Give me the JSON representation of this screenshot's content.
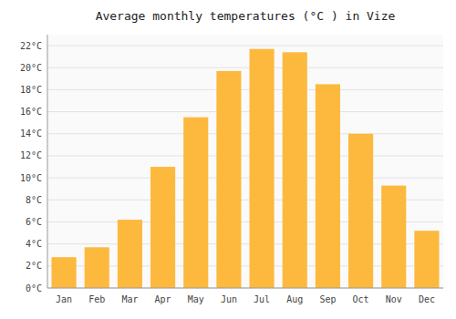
{
  "chart_data": {
    "type": "bar",
    "title": "Average monthly temperatures (°C ) in Vize",
    "categories": [
      "Jan",
      "Feb",
      "Mar",
      "Apr",
      "May",
      "Jun",
      "Jul",
      "Aug",
      "Sep",
      "Oct",
      "Nov",
      "Dec"
    ],
    "values": [
      2.8,
      3.7,
      6.2,
      11.0,
      15.5,
      19.7,
      21.7,
      21.4,
      18.5,
      14.0,
      9.3,
      5.2
    ],
    "color": "#FDB93E",
    "ylim": [
      0,
      23
    ],
    "yticks": [
      {
        "value": 0,
        "label": "0°C"
      },
      {
        "value": 2,
        "label": "2°C"
      },
      {
        "value": 4,
        "label": "4°C"
      },
      {
        "value": 6,
        "label": "6°C"
      },
      {
        "value": 8,
        "label": "8°C"
      },
      {
        "value": 10,
        "label": "10°C"
      },
      {
        "value": 12,
        "label": "12°C"
      },
      {
        "value": 14,
        "label": "14°C"
      },
      {
        "value": 16,
        "label": "16°C"
      },
      {
        "value": 18,
        "label": "18°C"
      },
      {
        "value": 20,
        "label": "20°C"
      },
      {
        "value": 22,
        "label": "22°C"
      }
    ],
    "grid": true
  }
}
